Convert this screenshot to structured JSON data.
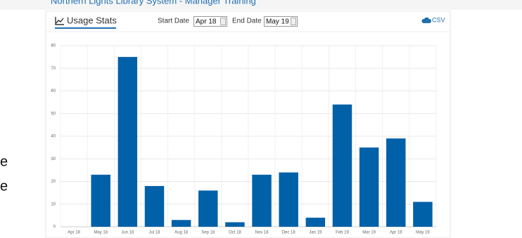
{
  "header": {
    "title": "Northern Lights Library System - Manager Training"
  },
  "left_fragments": [
    "e",
    "e"
  ],
  "toolbar": {
    "tab": "Usage Stats",
    "start_label": "Start Date",
    "start_value": "Apr 18",
    "end_label": "End Date",
    "end_value": "May 19",
    "export": "CSV"
  },
  "chart_data": {
    "type": "bar",
    "categories": [
      "Apr 18",
      "May 18",
      "Jun 18",
      "Jul 18",
      "Aug 18",
      "Sep 18",
      "Oct 18",
      "Nov 18",
      "Dec 18",
      "Jan 19",
      "Feb 19",
      "Mar 19",
      "Apr 19",
      "May 19"
    ],
    "values": [
      0,
      23,
      75,
      18,
      3,
      16,
      2,
      23,
      24,
      4,
      54,
      35,
      39,
      11
    ],
    "color": "#0061a8",
    "ylim": [
      0,
      80
    ],
    "yticks": [
      0,
      10,
      20,
      30,
      40,
      50,
      60,
      70,
      80
    ],
    "grid": true
  }
}
